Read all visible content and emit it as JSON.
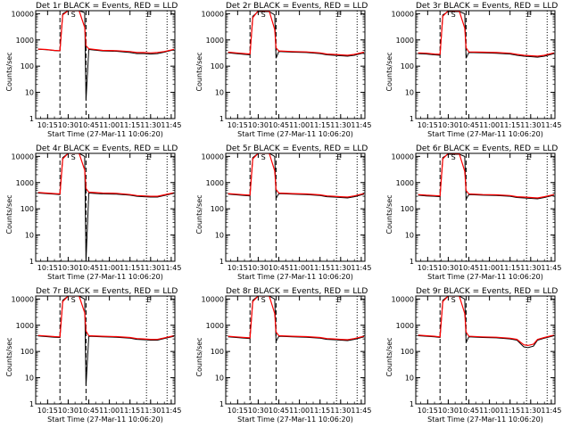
{
  "chart_data": {
    "type": "line",
    "time_ticks": [
      "10:15",
      "10:30",
      "10:45",
      "11:00",
      "11:15",
      "11:30",
      "11:45"
    ],
    "y_ticks": [
      "1",
      "10",
      "100",
      "1000",
      "10000"
    ],
    "ylim": [
      1,
      13000
    ],
    "y_scale": "log",
    "ylabel": "Counts/sec",
    "xlabel": "Start Time (27-Mar-11 10:06:20)",
    "marker_top_labels": [
      "S",
      "E"
    ],
    "dashed_vlines": [
      "10:24",
      "10:43"
    ],
    "dotted_vlines": [
      "11:27",
      "11:42"
    ],
    "panels": [
      {
        "title": "Det 1r BLACK = Events, RED = LLD",
        "series": [
          {
            "name": "Events",
            "color": "#000000",
            "x": [
              "10:08",
              "10:14",
              "10:20",
              "10:24",
              "10:26",
              "10:30",
              "10:38",
              "10:42",
              "10:43",
              "10:45",
              "10:55",
              "11:05",
              "11:15",
              "11:20",
              "11:25",
              "11:30",
              "11:35",
              "11:40",
              "11:47"
            ],
            "y": [
              440,
              420,
              390,
              380,
              10000,
              13000,
              13000,
              11000,
              5,
              430,
              380,
              370,
              330,
              300,
              300,
              290,
              300,
              340,
              420
            ]
          },
          {
            "name": "LLD",
            "color": "#ff0000",
            "x": [
              "10:08",
              "10:14",
              "10:20",
              "10:24",
              "10:26",
              "10:30",
              "10:38",
              "10:42",
              "10:43",
              "10:45",
              "10:55",
              "11:05",
              "11:15",
              "11:20",
              "11:25",
              "11:30",
              "11:35",
              "11:40",
              "11:47"
            ],
            "y": [
              450,
              430,
              400,
              390,
              9000,
              14000,
              13500,
              3000,
              600,
              460,
              400,
              390,
              360,
              330,
              330,
              320,
              330,
              360,
              440
            ]
          }
        ]
      },
      {
        "title": "Det 2r BLACK = Events, RED = LLD",
        "series": [
          {
            "name": "Events",
            "color": "#000000",
            "x": [
              "10:08",
              "10:14",
              "10:20",
              "10:24",
              "10:26",
              "10:30",
              "10:38",
              "10:42",
              "10:43",
              "10:45",
              "10:55",
              "11:05",
              "11:15",
              "11:20",
              "11:25",
              "11:30",
              "11:35",
              "11:40",
              "11:47"
            ],
            "y": [
              320,
              300,
              280,
              270,
              8000,
              12000,
              12000,
              9000,
              200,
              360,
              340,
              330,
              300,
              270,
              260,
              250,
              240,
              260,
              320
            ]
          },
          {
            "name": "LLD",
            "color": "#ff0000",
            "x": [
              "10:08",
              "10:14",
              "10:20",
              "10:24",
              "10:26",
              "10:30",
              "10:38",
              "10:42",
              "10:43",
              "10:45",
              "10:55",
              "11:05",
              "11:15",
              "11:20",
              "11:25",
              "11:30",
              "11:35",
              "11:40",
              "11:47"
            ],
            "y": [
              340,
              320,
              300,
              290,
              7000,
              13000,
              12500,
              2500,
              500,
              380,
              360,
              350,
              320,
              290,
              280,
              270,
              260,
              280,
              340
            ]
          }
        ]
      },
      {
        "title": "Det 3r BLACK = Events, RED = LLD",
        "series": [
          {
            "name": "Events",
            "color": "#000000",
            "x": [
              "10:08",
              "10:14",
              "10:20",
              "10:24",
              "10:26",
              "10:30",
              "10:38",
              "10:42",
              "10:43",
              "10:45",
              "10:55",
              "11:05",
              "11:15",
              "11:20",
              "11:25",
              "11:30",
              "11:35",
              "11:40",
              "11:47"
            ],
            "y": [
              300,
              290,
              270,
              260,
              9000,
              12000,
              12000,
              10000,
              200,
              330,
              320,
              310,
              290,
              260,
              240,
              230,
              220,
              240,
              300
            ]
          },
          {
            "name": "LLD",
            "color": "#ff0000",
            "x": [
              "10:08",
              "10:14",
              "10:20",
              "10:24",
              "10:26",
              "10:30",
              "10:38",
              "10:42",
              "10:43",
              "10:45",
              "10:55",
              "11:05",
              "11:15",
              "11:20",
              "11:25",
              "11:30",
              "11:35",
              "11:40",
              "11:47"
            ],
            "y": [
              320,
              310,
              290,
              280,
              8000,
              13000,
              12500,
              2800,
              500,
              350,
              340,
              330,
              310,
              280,
              260,
              250,
              240,
              260,
              320
            ]
          }
        ]
      },
      {
        "title": "Det 4r BLACK = Events, RED = LLD",
        "series": [
          {
            "name": "Events",
            "color": "#000000",
            "x": [
              "10:08",
              "10:14",
              "10:20",
              "10:24",
              "10:26",
              "10:30",
              "10:38",
              "10:42",
              "10:43",
              "10:45",
              "10:55",
              "11:05",
              "11:15",
              "11:20",
              "11:25",
              "11:30",
              "11:35",
              "11:40",
              "11:47"
            ],
            "y": [
              400,
              380,
              360,
              350,
              9000,
              13000,
              13000,
              10000,
              1,
              400,
              370,
              360,
              330,
              300,
              290,
              280,
              280,
              320,
              390
            ]
          },
          {
            "name": "LLD",
            "color": "#ff0000",
            "x": [
              "10:08",
              "10:14",
              "10:20",
              "10:24",
              "10:26",
              "10:30",
              "10:38",
              "10:42",
              "10:43",
              "10:45",
              "10:55",
              "11:05",
              "11:15",
              "11:20",
              "11:25",
              "11:30",
              "11:35",
              "11:40",
              "11:47"
            ],
            "y": [
              420,
              400,
              380,
              370,
              8000,
              14000,
              13500,
              3000,
              600,
              430,
              400,
              390,
              350,
              320,
              310,
              300,
              300,
              340,
              410
            ]
          }
        ]
      },
      {
        "title": "Det 5r BLACK = Events, RED = LLD",
        "series": [
          {
            "name": "Events",
            "color": "#000000",
            "x": [
              "10:08",
              "10:14",
              "10:20",
              "10:24",
              "10:26",
              "10:30",
              "10:38",
              "10:42",
              "10:43",
              "10:45",
              "10:55",
              "11:05",
              "11:15",
              "11:20",
              "11:25",
              "11:30",
              "11:35",
              "11:40",
              "11:47"
            ],
            "y": [
              360,
              340,
              320,
              310,
              9000,
              13000,
              13000,
              10000,
              250,
              380,
              360,
              350,
              320,
              290,
              280,
              270,
              260,
              290,
              360
            ]
          },
          {
            "name": "LLD",
            "color": "#ff0000",
            "x": [
              "10:08",
              "10:14",
              "10:20",
              "10:24",
              "10:26",
              "10:30",
              "10:38",
              "10:42",
              "10:43",
              "10:45",
              "10:55",
              "11:05",
              "11:15",
              "11:20",
              "11:25",
              "11:30",
              "11:35",
              "11:40",
              "11:47"
            ],
            "y": [
              380,
              360,
              340,
              330,
              8000,
              14000,
              13500,
              2800,
              550,
              400,
              380,
              370,
              340,
              310,
              300,
              290,
              280,
              310,
              380
            ]
          }
        ]
      },
      {
        "title": "Det 6r BLACK = Events, RED = LLD",
        "series": [
          {
            "name": "Events",
            "color": "#000000",
            "x": [
              "10:08",
              "10:14",
              "10:20",
              "10:24",
              "10:26",
              "10:30",
              "10:38",
              "10:42",
              "10:43",
              "10:45",
              "10:55",
              "11:05",
              "11:15",
              "11:20",
              "11:25",
              "11:30",
              "11:35",
              "11:40",
              "11:47"
            ],
            "y": [
              330,
              310,
              300,
              290,
              9000,
              12000,
              12000,
              10000,
              230,
              350,
              330,
              320,
              300,
              270,
              260,
              250,
              240,
              270,
              330
            ]
          },
          {
            "name": "LLD",
            "color": "#ff0000",
            "x": [
              "10:08",
              "10:14",
              "10:20",
              "10:24",
              "10:26",
              "10:30",
              "10:38",
              "10:42",
              "10:43",
              "10:45",
              "10:55",
              "11:05",
              "11:15",
              "11:20",
              "11:25",
              "11:30",
              "11:35",
              "11:40",
              "11:47"
            ],
            "y": [
              350,
              330,
              320,
              310,
              8000,
              13000,
              12500,
              2700,
              500,
              370,
              350,
              340,
              320,
              290,
              280,
              270,
              260,
              290,
              350
            ]
          }
        ]
      },
      {
        "title": "Det 7r BLACK = Events, RED = LLD",
        "series": [
          {
            "name": "Events",
            "color": "#000000",
            "x": [
              "10:08",
              "10:14",
              "10:20",
              "10:24",
              "10:26",
              "10:30",
              "10:38",
              "10:42",
              "10:43",
              "10:45",
              "10:55",
              "11:05",
              "11:15",
              "11:20",
              "11:25",
              "11:30",
              "11:35",
              "11:40",
              "11:47"
            ],
            "y": [
              390,
              370,
              350,
              340,
              9000,
              13000,
              13000,
              10000,
              5,
              380,
              360,
              350,
              320,
              290,
              280,
              270,
              270,
              310,
              380
            ]
          },
          {
            "name": "LLD",
            "color": "#ff0000",
            "x": [
              "10:08",
              "10:14",
              "10:20",
              "10:24",
              "10:26",
              "10:30",
              "10:38",
              "10:42",
              "10:43",
              "10:45",
              "10:55",
              "11:05",
              "11:15",
              "11:20",
              "11:25",
              "11:30",
              "11:35",
              "11:40",
              "11:47"
            ],
            "y": [
              410,
              390,
              370,
              360,
              8000,
              14000,
              13500,
              3000,
              600,
              400,
              380,
              370,
              340,
              310,
              300,
              290,
              290,
              330,
              400
            ]
          }
        ]
      },
      {
        "title": "Det 8r BLACK = Events, RED = LLD",
        "series": [
          {
            "name": "Events",
            "color": "#000000",
            "x": [
              "10:08",
              "10:14",
              "10:20",
              "10:24",
              "10:26",
              "10:30",
              "10:38",
              "10:42",
              "10:43",
              "10:45",
              "10:55",
              "11:05",
              "11:15",
              "11:20",
              "11:25",
              "11:30",
              "11:35",
              "11:40",
              "11:47"
            ],
            "y": [
              360,
              340,
              320,
              310,
              9000,
              13000,
              13000,
              10000,
              240,
              380,
              360,
              350,
              320,
              290,
              280,
              270,
              260,
              290,
              360
            ]
          },
          {
            "name": "LLD",
            "color": "#ff0000",
            "x": [
              "10:08",
              "10:14",
              "10:20",
              "10:24",
              "10:26",
              "10:30",
              "10:38",
              "10:42",
              "10:43",
              "10:45",
              "10:55",
              "11:05",
              "11:15",
              "11:20",
              "11:25",
              "11:30",
              "11:35",
              "11:40",
              "11:47"
            ],
            "y": [
              380,
              360,
              340,
              330,
              8000,
              14000,
              13500,
              2800,
              550,
              400,
              380,
              370,
              340,
              310,
              300,
              290,
              280,
              310,
              380
            ]
          }
        ]
      },
      {
        "title": "Det 9r BLACK = Events, RED = LLD",
        "series": [
          {
            "name": "Events",
            "color": "#000000",
            "x": [
              "10:08",
              "10:14",
              "10:20",
              "10:24",
              "10:26",
              "10:30",
              "10:38",
              "10:42",
              "10:43",
              "10:45",
              "10:55",
              "11:05",
              "11:15",
              "11:20",
              "11:25",
              "11:28",
              "11:32",
              "11:35",
              "11:40",
              "11:47"
            ],
            "y": [
              400,
              380,
              360,
              340,
              9000,
              13000,
              13000,
              10000,
              220,
              360,
              340,
              330,
              300,
              270,
              150,
              140,
              160,
              270,
              320,
              400
            ]
          },
          {
            "name": "LLD",
            "color": "#ff0000",
            "x": [
              "10:08",
              "10:14",
              "10:20",
              "10:24",
              "10:26",
              "10:30",
              "10:38",
              "10:42",
              "10:43",
              "10:45",
              "10:55",
              "11:05",
              "11:15",
              "11:20",
              "11:25",
              "11:28",
              "11:32",
              "11:35",
              "11:40",
              "11:47"
            ],
            "y": [
              420,
              400,
              380,
              360,
              8000,
              14000,
              13500,
              2800,
              550,
              380,
              360,
              350,
              320,
              290,
              180,
              170,
              190,
              290,
              340,
              420
            ]
          }
        ]
      }
    ]
  }
}
